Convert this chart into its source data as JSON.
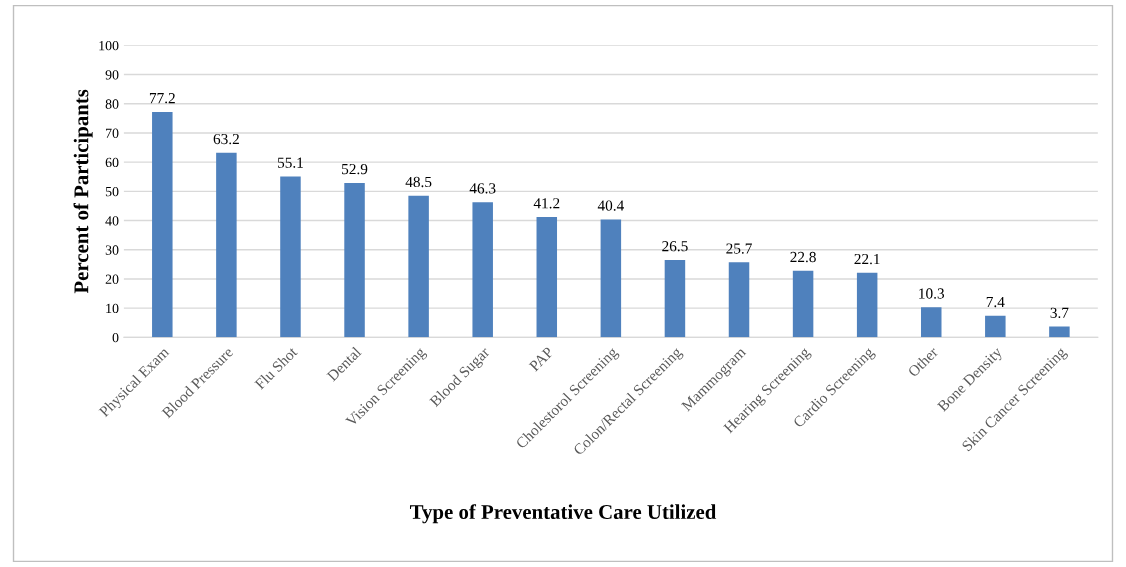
{
  "chart_data": {
    "type": "bar",
    "xlabel": "Type of Preventative Care Utilized",
    "ylabel": "Percent of Participants",
    "categories": [
      "Physical Exam",
      "Blood Pressure",
      "Flu Shot",
      "Dental",
      "Vision Screening",
      "Blood Sugar",
      "PAP",
      "Cholestorol Screening",
      "Colon/Rectal Screening",
      "Mammogram",
      "Hearing Screening",
      "Cardio Screening",
      "Other",
      "Bone Density",
      "Skin Cancer Screening"
    ],
    "values": [
      77.2,
      63.2,
      55.1,
      52.9,
      48.5,
      46.3,
      41.2,
      40.4,
      26.5,
      25.7,
      22.8,
      22.1,
      10.3,
      7.4,
      3.7
    ],
    "color": "#4f81bd",
    "data_labels": true,
    "grid": "y",
    "ylim": [
      0,
      100
    ],
    "yticks": [
      0,
      10,
      20,
      30,
      40,
      50,
      60,
      70,
      80,
      90,
      100
    ]
  }
}
